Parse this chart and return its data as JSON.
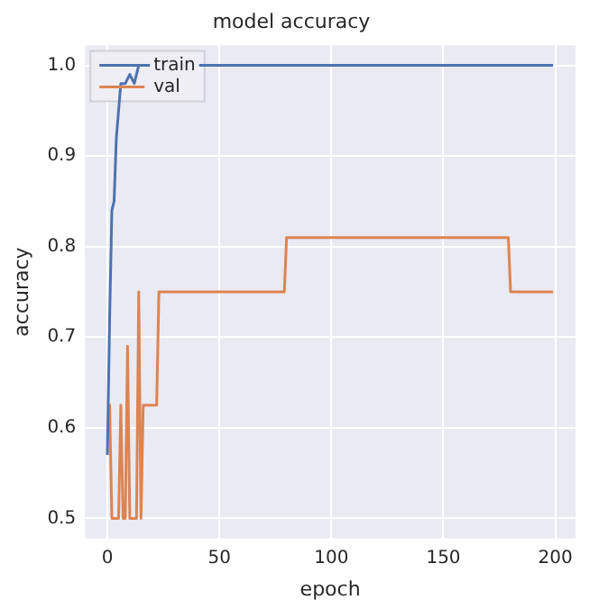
{
  "chart_data": {
    "type": "line",
    "title": "model accuracy",
    "xlabel": "epoch",
    "ylabel": "accuracy",
    "xlim": [
      -10,
      209
    ],
    "xticks": [
      0,
      50,
      100,
      150,
      200
    ],
    "ylim": [
      0.478,
      1.022
    ],
    "yticks": [
      0.5,
      0.6,
      0.7,
      0.8,
      0.9,
      {
        "value": 1,
        "label": "1.0"
      }
    ],
    "grid": true,
    "legend": "top left",
    "marker": "none",
    "line_style": "solid",
    "series": [
      {
        "name": "train",
        "color": "#4c72b0",
        "x": [
          0,
          1,
          2,
          3,
          4,
          5,
          6,
          8,
          10,
          12,
          14,
          16,
          199
        ],
        "values": [
          0.57,
          0.72,
          0.84,
          0.85,
          0.92,
          0.95,
          0.98,
          0.98,
          0.99,
          0.98,
          1.0,
          1.0,
          1.0
        ]
      },
      {
        "name": "val",
        "color": "#dd8452",
        "x": [
          0,
          1,
          2,
          5,
          6,
          7,
          8,
          9,
          10,
          13,
          14,
          15,
          16,
          22,
          23,
          79,
          80,
          179,
          180,
          199
        ],
        "values": [
          0.625,
          0.625,
          0.5,
          0.5,
          0.625,
          0.5,
          0.5,
          0.69,
          0.5,
          0.5,
          0.75,
          0.5,
          0.625,
          0.625,
          0.75,
          0.75,
          0.81,
          0.81,
          0.75,
          0.75
        ]
      }
    ]
  }
}
